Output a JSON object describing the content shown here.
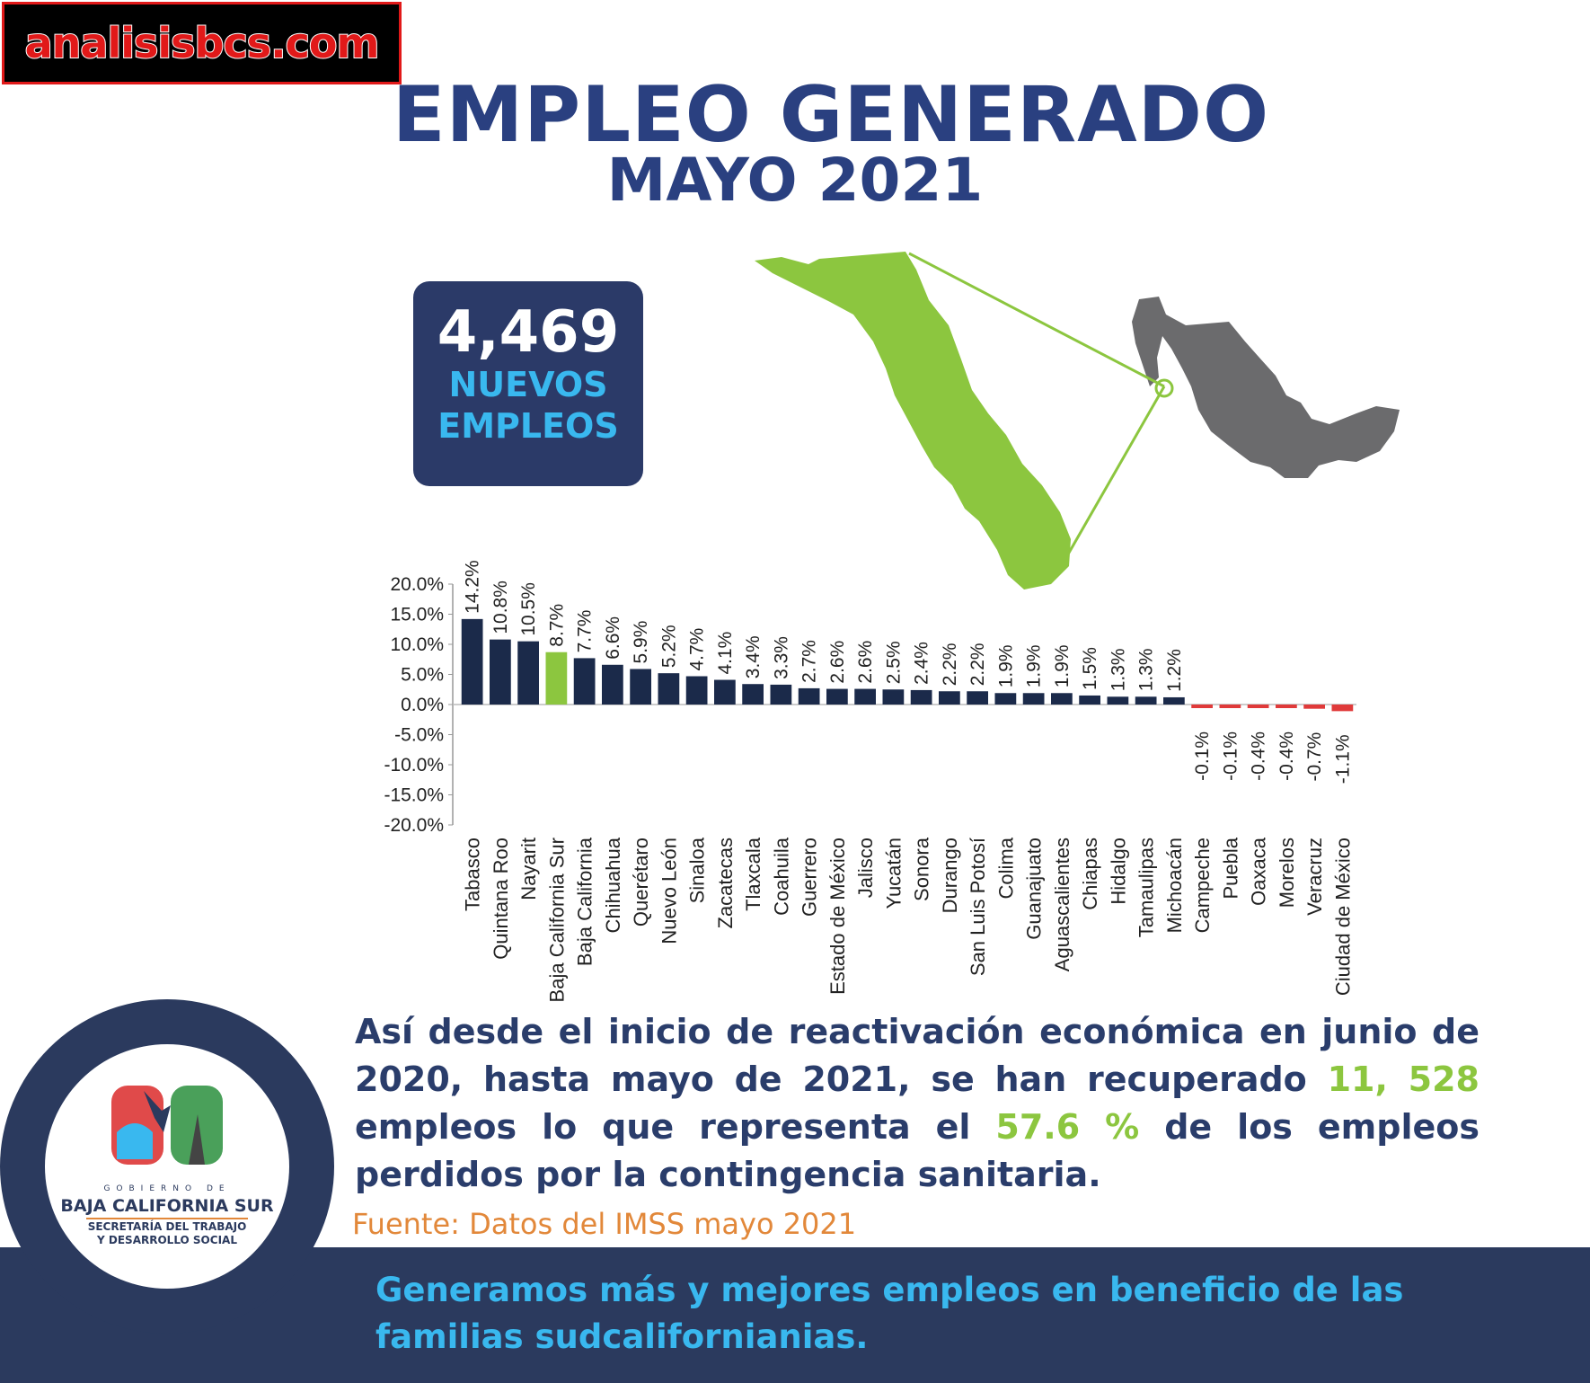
{
  "brand": {
    "text": "analisisbcs.com"
  },
  "header": {
    "title": "EMPLEO GENERADO",
    "subtitle": "MAYO 2021"
  },
  "stat": {
    "number": "4,469",
    "label_1": "NUEVOS",
    "label_2": "EMPLEOS"
  },
  "map": {
    "alt": "Mapa de México con Baja California Sur resaltada"
  },
  "chart_data": {
    "type": "bar",
    "title": "",
    "xlabel": "",
    "ylabel": "",
    "ylim": [
      -20,
      20
    ],
    "yticks": [
      "20.0%",
      "15.0%",
      "10.0%",
      "5.0%",
      "0.0%",
      "-5.0%",
      "-10.0%",
      "-15.0%",
      "-20.0%"
    ],
    "ytick_values": [
      20,
      15,
      10,
      5,
      0,
      -5,
      -10,
      -15,
      -20
    ],
    "categories": [
      "Tabasco",
      "Quintana Roo",
      "Nayarit",
      "Baja California Sur",
      "Baja California",
      "Chihuahua",
      "Querétaro",
      "Nuevo León",
      "Sinaloa",
      "Zacatecas",
      "Tlaxcala",
      "Coahuila",
      "Guerrero",
      "Estado de México",
      "Jalisco",
      "Yucatán",
      "Sonora",
      "Durango",
      "San Luis Potosí",
      "Colima",
      "Guanajuato",
      "Aguascalientes",
      "Chiapas",
      "Hidalgo",
      "Tamaulipas",
      "Michoacán",
      "Campeche",
      "Puebla",
      "Oaxaca",
      "Morelos",
      "Veracruz",
      "Ciudad de México"
    ],
    "values": [
      14.2,
      10.8,
      10.5,
      8.7,
      7.7,
      6.6,
      5.9,
      5.2,
      4.7,
      4.1,
      3.4,
      3.3,
      2.7,
      2.6,
      2.6,
      2.5,
      2.4,
      2.2,
      2.2,
      1.9,
      1.9,
      1.9,
      1.5,
      1.3,
      1.3,
      1.2,
      -0.1,
      -0.1,
      -0.4,
      -0.4,
      -0.7,
      -1.1
    ],
    "labels": [
      "14.2%",
      "10.8%",
      "10.5%",
      "8.7%",
      "7.7%",
      "6.6%",
      "5.9%",
      "5.2%",
      "4.7%",
      "4.1%",
      "3.4%",
      "3.3%",
      "2.7%",
      "2.6%",
      "2.6%",
      "2.5%",
      "2.4%",
      "2.2%",
      "2.2%",
      "1.9%",
      "1.9%",
      "1.9%",
      "1.5%",
      "1.3%",
      "1.3%",
      "1.2%",
      "-0.1%",
      "-0.1%",
      "-0.4%",
      "-0.4%",
      "-0.7%",
      "-1.1%"
    ],
    "highlight": "Baja California Sur",
    "colors": {
      "positive": "#1b2a4a",
      "highlight": "#8cc63f",
      "negative": "#e03a3a"
    },
    "grid": false
  },
  "text": {
    "p1": "Así desde el inicio de reactivación económica en junio de 2020, hasta mayo de 2021, se han recuperado ",
    "h1": "11, 528",
    "p2": " empleos lo que representa el ",
    "h2": "57.6 %",
    "p3": " de los  empleos perdidos por la contingencia sanitaria."
  },
  "source": "Fuente: Datos del IMSS mayo 2021",
  "slogan": "Generamos más y mejores empleos en beneficio de las familias sudcalifornianias.",
  "logo": {
    "gob": "GOBIERNO DE",
    "state": "BAJA CALIFORNIA SUR",
    "dept_1": "SECRETARÍA DEL TRABAJO",
    "dept_2": "Y DESARROLLO SOCIAL"
  },
  "theme": {
    "navy": "#2a4080",
    "accent_green": "#8cc63f",
    "accent_blue": "#39b8ef",
    "source_orange": "#e2883a"
  }
}
